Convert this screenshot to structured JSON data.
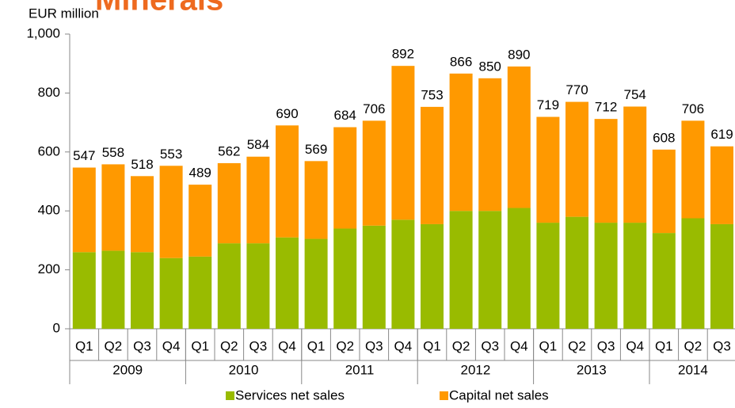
{
  "chart_data": {
    "type": "stacked_bar",
    "title": "Minerals",
    "y_label": "EUR million",
    "categories": [
      "Q1",
      "Q2",
      "Q3",
      "Q4",
      "Q1",
      "Q2",
      "Q3",
      "Q4",
      "Q1",
      "Q2",
      "Q3",
      "Q4",
      "Q1",
      "Q2",
      "Q3",
      "Q4",
      "Q1",
      "Q2",
      "Q3",
      "Q4",
      "Q1",
      "Q2",
      "Q3"
    ],
    "groups": [
      "2009",
      "2010",
      "2011",
      "2012",
      "2013",
      "2014"
    ],
    "series": [
      {
        "name": "Services net sales",
        "color": "#99bb00",
        "values": [
          260,
          265,
          260,
          240,
          245,
          290,
          290,
          310,
          305,
          340,
          350,
          370,
          355,
          400,
          400,
          410,
          360,
          380,
          360,
          360,
          325,
          375,
          355
        ]
      },
      {
        "name": "Capital net sales",
        "color": "#ff9900",
        "values": [
          287,
          293,
          258,
          313,
          244,
          272,
          294,
          380,
          264,
          344,
          356,
          522,
          398,
          466,
          450,
          480,
          359,
          390,
          352,
          394,
          283,
          331,
          264
        ]
      }
    ],
    "totals": [
      547,
      558,
      518,
      553,
      489,
      562,
      584,
      690,
      569,
      684,
      706,
      892,
      753,
      866,
      850,
      890,
      719,
      770,
      712,
      754,
      608,
      706,
      619
    ],
    "ylim": [
      0,
      1000
    ],
    "yticks": [
      0,
      200,
      400,
      600,
      800,
      {
        "value": 1000,
        "label": "1,000"
      }
    ],
    "grid": false,
    "legend": "bottom"
  }
}
